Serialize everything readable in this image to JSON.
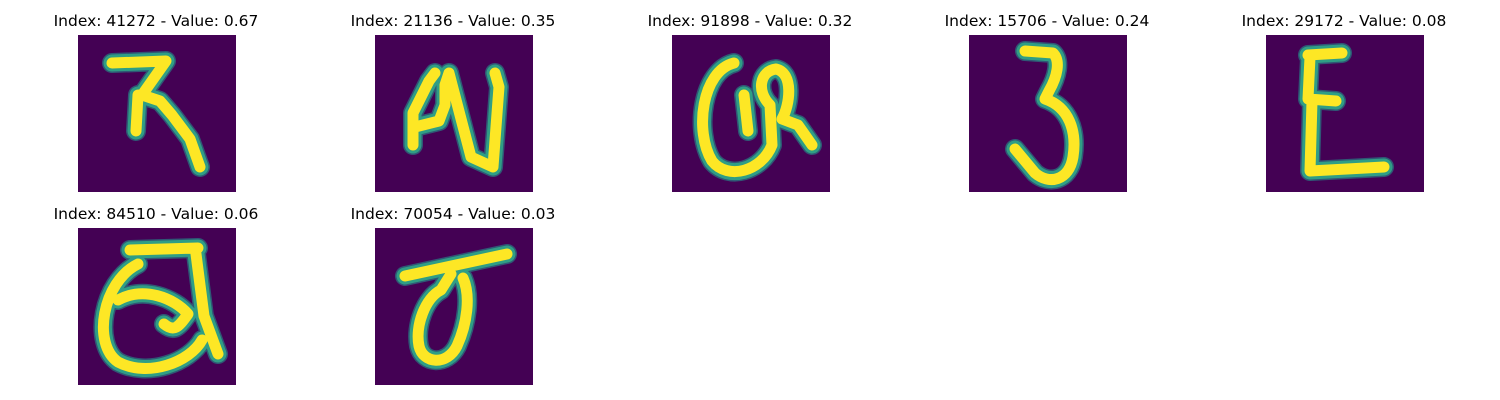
{
  "figure": {
    "panels": [
      {
        "title": "Index: 41272 - Value: 0.67",
        "glyph": "char-41272-image"
      },
      {
        "title": "Index: 21136 - Value: 0.35",
        "glyph": "char-21136-image"
      },
      {
        "title": "Index: 91898 - Value: 0.32",
        "glyph": "char-91898-image"
      },
      {
        "title": "Index: 15706 - Value: 0.24",
        "glyph": "char-15706-image"
      },
      {
        "title": "Index: 29172 - Value: 0.08",
        "glyph": "char-29172-image"
      },
      {
        "title": "Index: 84510 - Value: 0.06",
        "glyph": "char-84510-image"
      },
      {
        "title": "Index: 70054 - Value: 0.03",
        "glyph": "char-70054-image"
      }
    ],
    "colors": {
      "background": "#440154",
      "stroke_core": "#fde725",
      "stroke_edge": "#21918c"
    }
  }
}
